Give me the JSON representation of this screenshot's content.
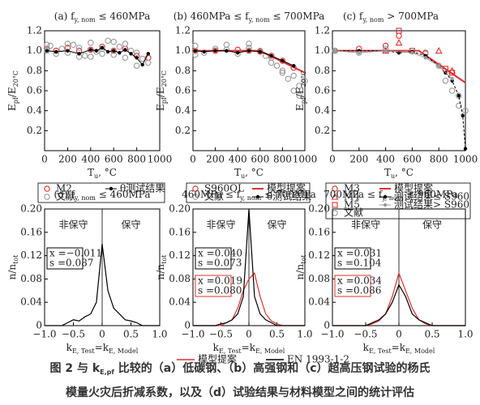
{
  "chart_data": [
    {
      "type": "scatter",
      "title_parts": [
        {
          "text": "(a) f"
        },
        {
          "text": "y, nom",
          "sub": true
        },
        {
          "text": " ≤ 460MPa"
        }
      ],
      "ylabel_parts": [
        {
          "text": "E"
        },
        {
          "text": "pf",
          "sub": true
        },
        {
          "text": "/E"
        },
        {
          "text": "20°C",
          "sub": true
        }
      ],
      "xlabel_parts": [
        {
          "text": "T"
        },
        {
          "text": "u",
          "sub": true
        },
        {
          "text": ", °C"
        }
      ],
      "xlim": [
        0,
        1000
      ],
      "xticks": [
        0,
        200,
        400,
        600,
        800,
        1000
      ],
      "ylim": [
        0,
        1.2
      ],
      "yticks": [
        0.2,
        0.4,
        0.6,
        0.8,
        {
          "value": 1,
          "label": "1.0"
        },
        1.2
      ],
      "series": [
        {
          "name": "M2",
          "color": "#e03030",
          "marker": "circle",
          "line": false,
          "x": [
            20,
            100,
            200,
            300,
            400,
            500,
            600,
            700,
            800,
            900
          ],
          "values": [
            1.02,
            1.0,
            1.03,
            1.0,
            1.01,
            1.04,
            1.0,
            1.02,
            0.95,
            0.93
          ]
        },
        {
          "name": "文献",
          "color": "#999999",
          "marker": "circle",
          "line": false,
          "x": [
            20,
            50,
            100,
            150,
            200,
            250,
            300,
            350,
            400,
            450,
            500,
            550,
            600,
            650,
            700,
            750,
            800,
            850,
            900,
            20,
            200,
            400,
            600,
            800,
            300,
            500,
            700
          ],
          "values": [
            1.0,
            1.05,
            0.97,
            1.02,
            0.98,
            1.06,
            1.03,
            0.95,
            1.08,
            0.99,
            1.02,
            1.1,
            0.96,
            1.04,
            0.93,
            1.0,
            0.85,
            0.92,
            0.88,
            1.06,
            1.07,
            0.94,
            1.09,
            0.98,
            0.94,
            0.97,
            1.07
          ]
        },
        {
          "name": "θ测试结果",
          "color": "#000000",
          "marker": "dot",
          "line": true,
          "x": [
            20,
            100,
            200,
            300,
            400,
            450,
            500,
            550,
            600,
            650,
            700,
            750,
            800,
            850,
            900
          ],
          "values": [
            1.0,
            0.99,
            1.0,
            0.97,
            1.01,
            1.0,
            1.03,
            0.99,
            1.0,
            0.98,
            1.01,
            0.97,
            0.93,
            0.86,
            0.97
          ]
        }
      ]
    },
    {
      "type": "scatter",
      "title_parts": [
        {
          "text": "(b) 460MPa ≤ f"
        },
        {
          "text": "y, nom",
          "sub": true
        },
        {
          "text": " ≤ 700MPa"
        }
      ],
      "ylabel_parts": [
        {
          "text": "E"
        },
        {
          "text": "pf",
          "sub": true
        },
        {
          "text": "/E"
        },
        {
          "text": "20°C",
          "sub": true
        }
      ],
      "xlabel_parts": [
        {
          "text": "T"
        },
        {
          "text": "u",
          "sub": true
        },
        {
          "text": ", °C"
        }
      ],
      "xlim": [
        0,
        1000
      ],
      "xticks": [
        0,
        200,
        400,
        600,
        800,
        1000
      ],
      "ylim": [
        0,
        1.2
      ],
      "yticks": [
        0.2,
        0.4,
        0.6,
        0.8,
        {
          "value": 1,
          "label": "1.0"
        },
        1.2
      ],
      "series": [
        {
          "name": "S960QL",
          "color": "#e03030",
          "marker": "circle",
          "line": false,
          "x": [
            20,
            200,
            400,
            500,
            600,
            700,
            800,
            900
          ],
          "values": [
            1.0,
            1.0,
            1.01,
            1.0,
            0.99,
            0.95,
            0.9,
            0.83
          ]
        },
        {
          "name": "文献",
          "color": "#999999",
          "marker": "circle",
          "line": false,
          "x": [
            20,
            100,
            200,
            300,
            400,
            500,
            600,
            650,
            700,
            750,
            800,
            850,
            900,
            950,
            20,
            300,
            500,
            700,
            800,
            900,
            950,
            1000
          ],
          "values": [
            1.05,
            0.98,
            1.02,
            1.06,
            0.97,
            1.03,
            1.0,
            0.95,
            0.88,
            0.85,
            0.8,
            0.72,
            0.75,
            0.65,
            0.96,
            1.01,
            1.07,
            0.93,
            0.78,
            0.6,
            0.55,
            0.7
          ]
        },
        {
          "name": "模型提案",
          "color": "#e03030",
          "marker": "none",
          "line": true,
          "width": 2,
          "x": [
            20,
            600,
            1000
          ],
          "values": [
            1,
            1,
            0.78
          ]
        },
        {
          "name": "θ测试结果",
          "color": "#000000",
          "marker": "dot",
          "line": true,
          "x": [
            20,
            100,
            200,
            300,
            400,
            500,
            600,
            700,
            800,
            900
          ],
          "values": [
            1.0,
            0.99,
            1.0,
            1.0,
            0.98,
            1.0,
            0.99,
            0.95,
            0.9,
            0.85
          ]
        }
      ]
    },
    {
      "type": "scatter",
      "title_parts": [
        {
          "text": "(c) f"
        },
        {
          "text": "y, nom",
          "sub": true
        },
        {
          "text": " > 700MPa"
        }
      ],
      "ylabel_parts": [
        {
          "text": "E"
        },
        {
          "text": "pf",
          "sub": true
        },
        {
          "text": "/E"
        },
        {
          "text": "20°C",
          "sub": true
        }
      ],
      "xlabel_parts": [
        {
          "text": "T"
        },
        {
          "text": "u",
          "sub": true
        },
        {
          "text": ", °C"
        }
      ],
      "xlim": [
        0,
        1000
      ],
      "xticks": [
        0,
        200,
        400,
        600,
        800,
        1000
      ],
      "ylim": [
        0,
        1.2
      ],
      "yticks": [
        0.2,
        0.4,
        0.6,
        0.8,
        {
          "value": 1,
          "label": "1.0"
        },
        1.2
      ],
      "series": [
        {
          "name": "M3",
          "color": "#e03030",
          "marker": "circle",
          "line": false,
          "x": [
            20,
            200,
            400,
            500,
            600,
            700
          ],
          "values": [
            1.0,
            1.02,
            1.05,
            1.15,
            1.0,
            0.98
          ]
        },
        {
          "name": "M4",
          "color": "#e03030",
          "marker": "triangle",
          "line": false,
          "x": [
            400,
            500,
            800,
            900
          ],
          "values": [
            1.0,
            1.08,
            1.0,
            0.8
          ]
        },
        {
          "name": "M5",
          "color": "#e03030",
          "marker": "square",
          "line": false,
          "x": [
            500,
            600,
            850,
            900
          ],
          "values": [
            1.2,
            1.0,
            0.82,
            0.78
          ]
        },
        {
          "name": "文献",
          "color": "#999999",
          "marker": "circle",
          "line": false,
          "x": [
            20,
            200,
            400,
            600,
            700,
            800,
            850,
            900,
            950,
            950,
            1000
          ],
          "values": [
            1.0,
            0.98,
            1.02,
            1.0,
            0.97,
            0.85,
            0.7,
            0.6,
            0.55,
            0.45,
            0.4
          ]
        },
        {
          "name": "模型提案",
          "color": "#e03030",
          "marker": "none",
          "line": true,
          "width": 2,
          "x": [
            20,
            650,
            1000
          ],
          "values": [
            1,
            1,
            0.68
          ]
        },
        {
          "name": "测试结果≤ S960",
          "color": "#000000",
          "marker": "dot",
          "line": true,
          "dashed": true,
          "x": [
            20,
            200,
            400,
            500,
            600,
            700,
            800,
            850,
            900,
            950,
            980,
            1000
          ],
          "values": [
            1,
            1,
            1,
            0.98,
            0.99,
            0.95,
            0.85,
            0.78,
            0.7,
            0.55,
            0.35,
            0.02
          ]
        },
        {
          "name": "测试结果> S960",
          "color": "#999999",
          "marker": "dot",
          "line": true,
          "x": [
            20,
            200,
            400,
            600,
            700,
            800,
            900
          ],
          "values": [
            1.0,
            0.98,
            1.0,
            0.98,
            0.93,
            0.85,
            0.72
          ]
        }
      ]
    },
    {
      "type": "line",
      "title_parts": [
        {
          "text": "(d) f"
        },
        {
          "text": "y, nom",
          "sub": true
        },
        {
          "text": " ≤ 460MPa"
        }
      ],
      "ylabel_parts": [
        {
          "text": "n/n"
        },
        {
          "text": "tot",
          "sub": true
        }
      ],
      "xlabel_parts": [
        {
          "text": "k"
        },
        {
          "text": "E, Test",
          "sub": true
        },
        {
          "text": "=k"
        },
        {
          "text": "E, Model",
          "sub": true
        }
      ],
      "xlim": [
        -1,
        1
      ],
      "xticks": [
        {
          "value": -1,
          "label": "−1.0"
        },
        {
          "value": -0.5,
          "label": "−0.5"
        },
        0,
        0.5,
        {
          "value": 1,
          "label": "1.0"
        }
      ],
      "ylim": [
        0,
        0.2
      ],
      "yticks": [
        0,
        0.04,
        0.08,
        0.12,
        0.16,
        {
          "value": 0.2,
          "label": "0.20"
        }
      ],
      "annotations": [
        "非保守",
        "保守"
      ],
      "stats": [
        {
          "color": "#000000",
          "lines": [
            "x =−0.011",
            "s =0.087"
          ]
        }
      ],
      "series": [
        {
          "color": "#000000",
          "x": [
            -1,
            -0.9,
            -0.8,
            -0.7,
            -0.6,
            -0.5,
            -0.4,
            -0.3,
            -0.2,
            -0.1,
            0,
            0.1,
            0.2,
            0.3,
            0.4,
            0.5,
            0.6,
            0.7,
            0.8,
            0.9,
            1
          ],
          "values": [
            0,
            0,
            0,
            0,
            0.005,
            0.01,
            0.008,
            0.015,
            0.02,
            0.04,
            0.14,
            0.06,
            0.03,
            0.02,
            0.01,
            0.008,
            0.005,
            0,
            0,
            0,
            0
          ]
        }
      ]
    },
    {
      "type": "line",
      "title_parts": [
        {
          "text": "460MPa ≤ f"
        },
        {
          "text": "y, nom",
          "sub": true
        },
        {
          "text": " ≤ 700MPa"
        }
      ],
      "ylabel_parts": [
        {
          "text": "n/n"
        },
        {
          "text": "tot",
          "sub": true
        }
      ],
      "xlabel_parts": [
        {
          "text": "k"
        },
        {
          "text": "E, Test",
          "sub": true
        },
        {
          "text": "=k"
        },
        {
          "text": "E, Model",
          "sub": true
        }
      ],
      "xlim": [
        -1,
        1
      ],
      "xticks": [
        {
          "value": -1,
          "label": "−1.0"
        },
        {
          "value": -0.5,
          "label": "−0.5"
        },
        0,
        0.5,
        {
          "value": 1,
          "label": "1.0"
        }
      ],
      "ylim": [
        0,
        0.2
      ],
      "yticks": [
        0,
        0.04,
        0.08,
        0.12,
        0.16,
        {
          "value": 0.2,
          "label": "0.20"
        }
      ],
      "annotations": [
        "非保守",
        "保守"
      ],
      "stats": [
        {
          "color": "#000000",
          "lines": [
            "x =0.040",
            "s =0.073"
          ]
        },
        {
          "color": "#e03030",
          "lines": [
            "x =0.019",
            "s =0.080"
          ]
        }
      ],
      "series": [
        {
          "name": "模型提案",
          "color": "#e03030",
          "x": [
            -1,
            -0.9,
            -0.8,
            -0.7,
            -0.6,
            -0.5,
            -0.4,
            -0.3,
            -0.2,
            -0.1,
            0,
            0.1,
            0.2,
            0.3,
            0.4,
            0.5,
            0.6,
            0.7,
            0.8,
            0.9,
            1
          ],
          "values": [
            0,
            0,
            0,
            0,
            0,
            0,
            0.005,
            0.01,
            0.03,
            0.06,
            0.08,
            0.09,
            0.05,
            0.02,
            0.008,
            0.003,
            0,
            0,
            0,
            0,
            0
          ]
        },
        {
          "name": "EN 1993-1-2",
          "color": "#000000",
          "x": [
            -1,
            -0.9,
            -0.8,
            -0.7,
            -0.6,
            -0.5,
            -0.4,
            -0.3,
            -0.2,
            -0.1,
            0,
            0.1,
            0.2,
            0.3,
            0.4,
            0.5,
            0.6,
            0.7,
            0.8,
            0.9,
            1
          ],
          "values": [
            0,
            0,
            0,
            0,
            0,
            0.003,
            0.005,
            0.01,
            0.02,
            0.05,
            0.2,
            0.05,
            0.02,
            0.01,
            0.005,
            0,
            0,
            0,
            0,
            0,
            0
          ]
        }
      ]
    },
    {
      "type": "line",
      "title_parts": [
        {
          "text": "700MPa ≤ f"
        },
        {
          "text": "y, nom",
          "sub": true
        },
        {
          "text": " ≤ 960MPa"
        }
      ],
      "ylabel_parts": [
        {
          "text": "n/n"
        },
        {
          "text": "tot",
          "sub": true
        }
      ],
      "xlabel_parts": [
        {
          "text": "k"
        },
        {
          "text": "E, Test",
          "sub": true
        },
        {
          "text": "=k"
        },
        {
          "text": "E, Model",
          "sub": true
        }
      ],
      "xlim": [
        -1,
        1
      ],
      "xticks": [
        {
          "value": -1,
          "label": "−1.0"
        },
        {
          "value": -0.5,
          "label": "−0.5"
        },
        0,
        0.5,
        {
          "value": 1,
          "label": "1.0"
        }
      ],
      "ylim": [
        0,
        0.2
      ],
      "yticks": [
        0,
        0.04,
        0.08,
        0.12,
        0.16,
        {
          "value": 0.2,
          "label": "0.20"
        }
      ],
      "annotations": [
        "非保守",
        "保守"
      ],
      "stats": [
        {
          "color": "#000000",
          "lines": [
            "x =0.031",
            "s =0.104"
          ]
        },
        {
          "color": "#e03030",
          "lines": [
            "x =0.034",
            "s =0.086"
          ]
        }
      ],
      "series": [
        {
          "color": "#e03030",
          "x": [
            -1,
            -0.9,
            -0.8,
            -0.7,
            -0.6,
            -0.5,
            -0.4,
            -0.3,
            -0.2,
            -0.1,
            0,
            0.1,
            0.2,
            0.3,
            0.4,
            0.5,
            0.6,
            0.7,
            0.8,
            0.9,
            1
          ],
          "values": [
            0,
            0,
            0,
            0,
            0,
            0,
            0.003,
            0.008,
            0.02,
            0.05,
            0.09,
            0.06,
            0.03,
            0.01,
            0.003,
            0,
            0,
            0,
            0,
            0,
            0
          ]
        },
        {
          "color": "#000000",
          "x": [
            -1,
            -0.9,
            -0.8,
            -0.7,
            -0.6,
            -0.5,
            -0.4,
            -0.3,
            -0.2,
            -0.1,
            0,
            0.1,
            0.2,
            0.3,
            0.4,
            0.5,
            0.6,
            0.7,
            0.8,
            0.9,
            1
          ],
          "values": [
            0,
            0,
            0,
            0,
            0,
            0,
            0.005,
            0.01,
            0.02,
            0.04,
            0.07,
            0.05,
            0.02,
            0.01,
            0.005,
            0,
            0,
            0,
            0,
            0,
            0
          ]
        }
      ]
    }
  ],
  "caption": [
    [
      {
        "text": "图 2 与 k"
      },
      {
        "text": "E,pf",
        "sub": true
      },
      {
        "text": " 比较的（a）低碳钢、（b）高强钢和（c）超高压钢试验的杨氏"
      }
    ],
    [
      {
        "text": "模量火灾后折减系数，以及（d）试验结果与材料模型之间的统计评估"
      }
    ]
  ]
}
